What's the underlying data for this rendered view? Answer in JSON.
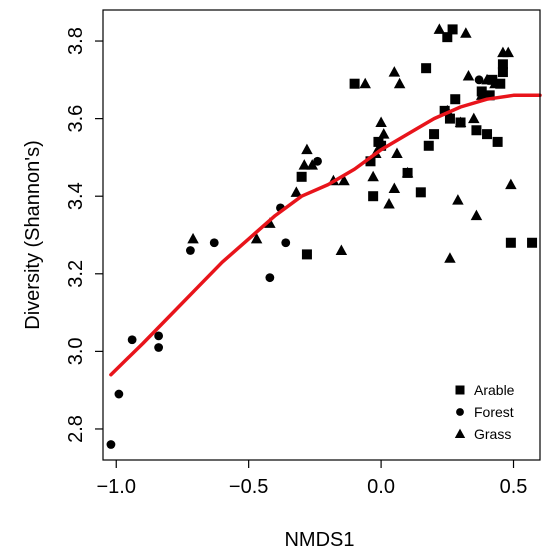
{
  "chart_data": {
    "type": "scatter",
    "title": "",
    "xlabel": "NMDS1",
    "ylabel": "Diversity (Shannon's)",
    "xlim": [
      -1.05,
      0.6
    ],
    "ylim": [
      2.72,
      3.88
    ],
    "xticks": [
      -1.0,
      -0.5,
      0.0,
      0.5
    ],
    "xtick_labels": [
      "−1.0",
      "−0.5",
      "0.0",
      "0.5"
    ],
    "yticks": [
      2.8,
      3.0,
      3.2,
      3.4,
      3.6,
      3.8
    ],
    "ytick_labels": [
      "2.8",
      "3.0",
      "3.2",
      "3.4",
      "3.6",
      "3.8"
    ],
    "grid": false,
    "legend_position": "bottom-right",
    "series": [
      {
        "name": "Arable",
        "marker": "square",
        "color": "#000000",
        "points": [
          [
            -0.3,
            3.45
          ],
          [
            -0.28,
            3.25
          ],
          [
            -0.1,
            3.69
          ],
          [
            -0.04,
            3.49
          ],
          [
            -0.03,
            3.4
          ],
          [
            -0.01,
            3.54
          ],
          [
            0.0,
            3.53
          ],
          [
            0.1,
            3.46
          ],
          [
            0.15,
            3.41
          ],
          [
            0.17,
            3.73
          ],
          [
            0.18,
            3.53
          ],
          [
            0.2,
            3.56
          ],
          [
            0.24,
            3.62
          ],
          [
            0.25,
            3.81
          ],
          [
            0.26,
            3.6
          ],
          [
            0.27,
            3.83
          ],
          [
            0.28,
            3.65
          ],
          [
            0.3,
            3.59
          ],
          [
            0.36,
            3.57
          ],
          [
            0.38,
            3.67
          ],
          [
            0.4,
            3.56
          ],
          [
            0.41,
            3.66
          ],
          [
            0.42,
            3.7
          ],
          [
            0.44,
            3.54
          ],
          [
            0.45,
            3.69
          ],
          [
            0.46,
            3.72
          ],
          [
            0.46,
            3.74
          ],
          [
            0.49,
            3.28
          ],
          [
            0.57,
            3.28
          ]
        ]
      },
      {
        "name": "Forest",
        "marker": "circle",
        "color": "#000000",
        "points": [
          [
            -1.02,
            2.76
          ],
          [
            -0.99,
            2.89
          ],
          [
            -0.94,
            3.03
          ],
          [
            -0.84,
            3.01
          ],
          [
            -0.84,
            3.04
          ],
          [
            -0.72,
            3.26
          ],
          [
            -0.63,
            3.28
          ],
          [
            -0.42,
            3.19
          ],
          [
            -0.38,
            3.37
          ],
          [
            -0.36,
            3.28
          ],
          [
            -0.24,
            3.49
          ],
          [
            0.37,
            3.7
          ]
        ]
      },
      {
        "name": "Grass",
        "marker": "triangle",
        "color": "#000000",
        "points": [
          [
            -0.71,
            3.29
          ],
          [
            -0.47,
            3.29
          ],
          [
            -0.42,
            3.33
          ],
          [
            -0.32,
            3.41
          ],
          [
            -0.29,
            3.48
          ],
          [
            -0.28,
            3.52
          ],
          [
            -0.26,
            3.48
          ],
          [
            -0.18,
            3.44
          ],
          [
            -0.15,
            3.26
          ],
          [
            -0.14,
            3.44
          ],
          [
            -0.06,
            3.69
          ],
          [
            -0.03,
            3.45
          ],
          [
            -0.02,
            3.51
          ],
          [
            0.0,
            3.59
          ],
          [
            0.01,
            3.56
          ],
          [
            0.03,
            3.38
          ],
          [
            0.05,
            3.42
          ],
          [
            0.06,
            3.51
          ],
          [
            0.05,
            3.72
          ],
          [
            0.07,
            3.69
          ],
          [
            0.1,
            3.46
          ],
          [
            0.22,
            3.83
          ],
          [
            0.25,
            3.62
          ],
          [
            0.26,
            3.24
          ],
          [
            0.29,
            3.39
          ],
          [
            0.3,
            3.59
          ],
          [
            0.32,
            3.82
          ],
          [
            0.33,
            3.71
          ],
          [
            0.35,
            3.6
          ],
          [
            0.36,
            3.35
          ],
          [
            0.38,
            3.66
          ],
          [
            0.4,
            3.7
          ],
          [
            0.43,
            3.69
          ],
          [
            0.46,
            3.77
          ],
          [
            0.48,
            3.77
          ],
          [
            0.49,
            3.43
          ]
        ]
      }
    ],
    "trend_line": {
      "color": "#e8141b",
      "points": [
        [
          -1.02,
          2.94
        ],
        [
          -0.9,
          3.02
        ],
        [
          -0.8,
          3.09
        ],
        [
          -0.7,
          3.16
        ],
        [
          -0.6,
          3.23
        ],
        [
          -0.5,
          3.29
        ],
        [
          -0.4,
          3.35
        ],
        [
          -0.3,
          3.4
        ],
        [
          -0.2,
          3.43
        ],
        [
          -0.1,
          3.47
        ],
        [
          0.0,
          3.52
        ],
        [
          0.1,
          3.56
        ],
        [
          0.2,
          3.6
        ],
        [
          0.3,
          3.63
        ],
        [
          0.4,
          3.65
        ],
        [
          0.5,
          3.66
        ],
        [
          0.6,
          3.66
        ]
      ]
    }
  }
}
